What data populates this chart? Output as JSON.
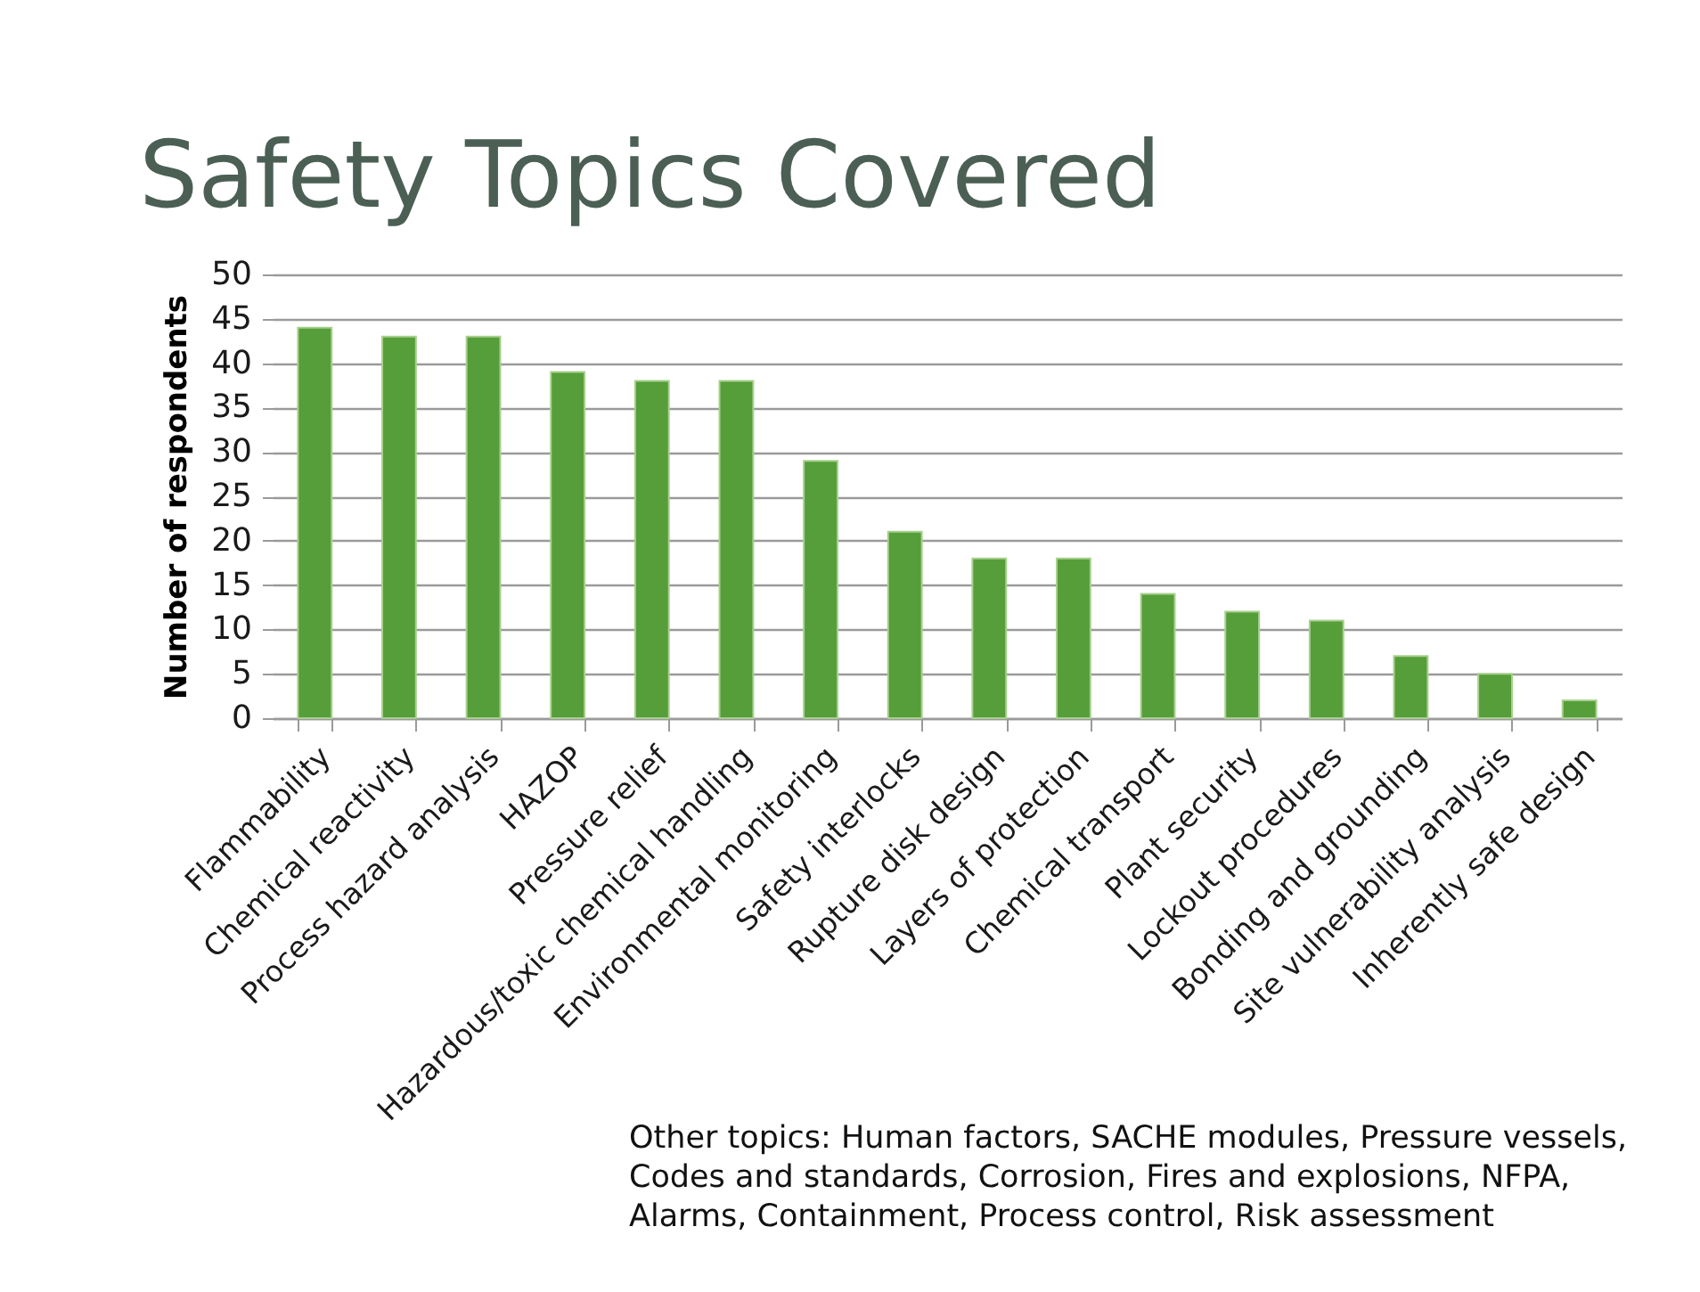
{
  "chart_data": {
    "type": "bar",
    "title": "Safety Topics Covered",
    "ylabel": "Number of respondents",
    "categories": [
      "Flammability",
      "Chemical reactivity",
      "Process hazard analysis",
      "HAZOP",
      "Pressure relief",
      "Hazardous/toxic chemical handling",
      "Environmental monitoring",
      "Safety interlocks",
      "Rupture disk design",
      "Layers of protection",
      "Chemical transport",
      "Plant security",
      "Lockout procedures",
      "Bonding and grounding",
      "Site vulnerability analysis",
      "Inherently safe design"
    ],
    "values": [
      44,
      43,
      43,
      39,
      38,
      38,
      29,
      21,
      18,
      18,
      14,
      12,
      11,
      7,
      5,
      2
    ],
    "color": "#559e3a",
    "ylim": [
      0,
      50
    ],
    "yticks": [
      0,
      5,
      10,
      15,
      20,
      25,
      30,
      35,
      40,
      45,
      50
    ],
    "grid": "y",
    "annotations": [
      "Other topics: Human factors, SACHE modules, Pressure vessels, Codes and standards, Corrosion, Fires and explosions, NFPA, Alarms, Containment, Process control, Risk assessment"
    ]
  }
}
